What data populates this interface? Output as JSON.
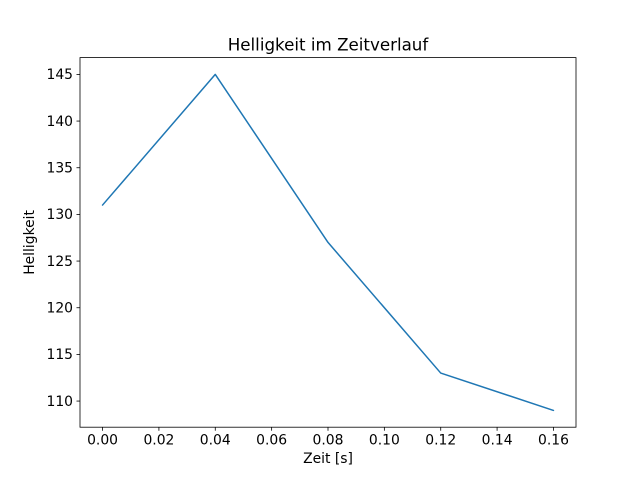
{
  "figure": {
    "background_color": "#ffffff",
    "spine_color": "#000000",
    "text_color": "#000000"
  },
  "chart_data": {
    "type": "line",
    "title": "Helligkeit im Zeitverlauf",
    "xlabel": "Zeit [s]",
    "ylabel": "Helligkeit",
    "x": [
      0.0,
      0.04,
      0.08,
      0.12,
      0.16
    ],
    "y": [
      131,
      145,
      127,
      113,
      109
    ],
    "xlim": [
      -0.008,
      0.168
    ],
    "ylim": [
      107.2,
      146.8
    ],
    "xticks": [
      0.0,
      0.02,
      0.04,
      0.06,
      0.08,
      0.1,
      0.12,
      0.14,
      0.16
    ],
    "xtick_labels": [
      "0.00",
      "0.02",
      "0.04",
      "0.06",
      "0.08",
      "0.10",
      "0.12",
      "0.14",
      "0.16"
    ],
    "yticks": [
      110,
      115,
      120,
      125,
      130,
      135,
      140,
      145
    ],
    "ytick_labels": [
      "110",
      "115",
      "120",
      "125",
      "130",
      "135",
      "140",
      "145"
    ],
    "line_color": "#1f77b4",
    "line_width": 1.5,
    "grid": false,
    "legend": "none"
  }
}
